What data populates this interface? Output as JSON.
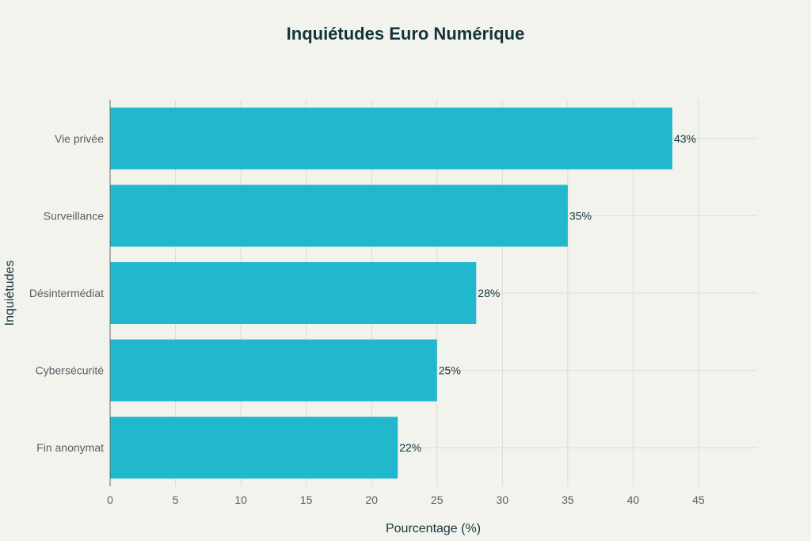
{
  "chart_data": {
    "type": "bar",
    "orientation": "horizontal",
    "title": "Inquiétudes Euro Numérique",
    "xlabel": "Pourcentage (%)",
    "ylabel": "Inquiétudes",
    "categories": [
      "Vie privée",
      "Surveillance",
      "Désintermédiat",
      "Cybersécurité",
      "Fin anonymat"
    ],
    "values": [
      43,
      35,
      28,
      25,
      22
    ],
    "value_labels": [
      "43%",
      "35%",
      "28%",
      "25%",
      "22%"
    ],
    "xlim": [
      0,
      49.5
    ],
    "xticks": [
      0,
      5,
      10,
      15,
      20,
      25,
      30,
      35,
      40,
      45
    ],
    "grid": true,
    "bar_color": "#21b8cd"
  }
}
